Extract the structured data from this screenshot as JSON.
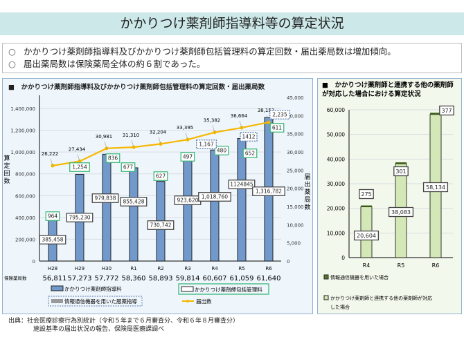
{
  "title": "かかりつけ薬剤師指導料等の算定状況",
  "bullets": [
    "かかりつけ薬剤師指導料及びかかりつけ薬剤師包括管理料の算定回数・届出薬局数は増加傾向。",
    "届出薬局数は保険薬局全体の約６割であった。"
  ],
  "source": [
    "出典：社会医療診療行為別統計（令和５年まで６月審査分、令和６年８月審査分）",
    "施設基準の届出状況の報告、保険局医療課調べ"
  ],
  "colors": {
    "bar_blue": "#7199cc",
    "line_orange": "#f5b800",
    "label_green": "#3cb878",
    "bar_green": "#d3e8b6",
    "bar_dark_green": "#3a5a1a"
  },
  "chart_data": [
    {
      "type": "bar+line",
      "title": "■　かかりつけ薬剤師指導料及びかかりつけ薬剤師包括管理料の算定回数・届出薬局数",
      "categories": [
        "H28",
        "H29",
        "H30",
        "R1",
        "R2",
        "R3",
        "R4",
        "R5",
        "R6"
      ],
      "ylabel": "算定回数",
      "y2label": "届出薬局数",
      "ylim": [
        0,
        1400000
      ],
      "yticks": [
        "0",
        "200,000",
        "400,000",
        "600,000",
        "800,000",
        "1,000,000",
        "1,200,000",
        "1,400,000"
      ],
      "y2lim": [
        0,
        45000
      ],
      "y2ticks": [
        "0",
        "5,000",
        "10,000",
        "15,000",
        "20,000",
        "25,000",
        "30,000",
        "35,000",
        "40,000",
        "45,000"
      ],
      "series": [
        {
          "name": "かかりつけ薬剤師指導料",
          "type": "bar",
          "values": [
            385458,
            795230,
            979838,
            855428,
            730742,
            923620,
            1018760,
            1124845,
            1316782
          ],
          "labels": [
            "385,458",
            "795,230",
            "979,838",
            "855,428",
            "730,742",
            "923,620",
            "1,018,760",
            "1124845",
            "1,316,782"
          ]
        },
        {
          "name": "かかりつけ薬剤師包括管理料",
          "type": "bar-label",
          "values": [
            964,
            1254,
            836,
            677,
            627,
            497,
            480,
            652,
            611
          ],
          "labels": [
            "964",
            "1,254",
            "836",
            "677",
            "627",
            "497",
            "480",
            "652",
            "611"
          ]
        },
        {
          "name": "情報通信機器を用いた服薬指導",
          "type": "bar-label",
          "values": [
            null,
            null,
            null,
            null,
            null,
            null,
            1167,
            1412,
            2235
          ],
          "labels": [
            null,
            null,
            null,
            null,
            null,
            null,
            "1,167",
            "1412",
            "2,235"
          ]
        },
        {
          "name": "届出数",
          "type": "line",
          "axis": "y2",
          "values": [
            26222,
            27434,
            30981,
            31310,
            32204,
            33395,
            35382,
            36664,
            38153
          ],
          "labels": [
            "26,222",
            "27,434",
            "30,981",
            "31,310",
            "32,204",
            "33,395",
            "35,382",
            "36,664",
            "38,153"
          ]
        }
      ],
      "row_label": "保険薬局数",
      "row_values": [
        "56,811",
        "57,273",
        "57,772",
        "58,360",
        "58,893",
        "59,814",
        "60,607",
        "61,059",
        "61,640"
      ],
      "grid": true
    },
    {
      "type": "stacked-bar",
      "title": "■　かかりつけ薬剤師と連携する他の薬剤師が対応した場合における算定状況",
      "categories": [
        "R4",
        "R5",
        "R6"
      ],
      "ylim": [
        0,
        60000
      ],
      "yticks": [
        "0",
        "10,000",
        "20,000",
        "30,000",
        "40,000",
        "50,000",
        "60,000"
      ],
      "series": [
        {
          "name": "かかりつけ薬剤師と連携する他の薬剤師が対応した場合",
          "values": [
            20604,
            38083,
            58134
          ],
          "labels": [
            "20,604",
            "38,083",
            "58,134"
          ]
        },
        {
          "name": "情報通信機器を用いた場合",
          "values": [
            275,
            301,
            377
          ],
          "labels": [
            "275",
            "301",
            "377"
          ]
        }
      ],
      "grid": true
    }
  ]
}
